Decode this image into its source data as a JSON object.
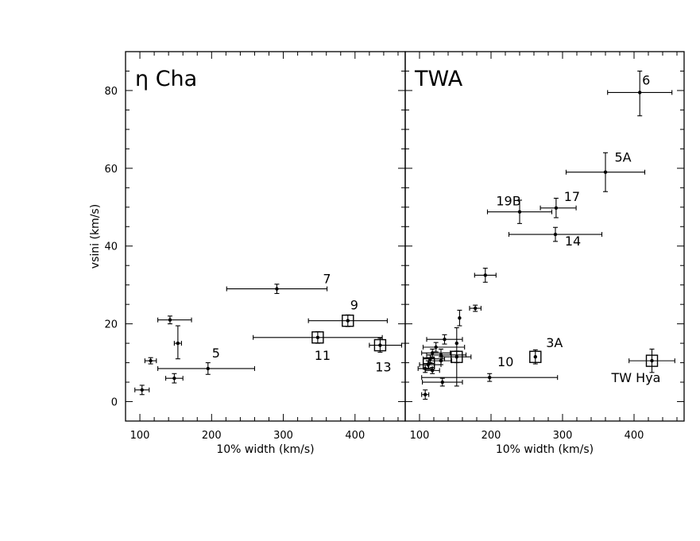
{
  "chart_data": [
    {
      "type": "scatter",
      "panel": "eta-cha",
      "title": "η Cha",
      "xlabel": "10% width (km/s)",
      "ylabel": "vsini (km/s)",
      "xlim": [
        80,
        470
      ],
      "ylim": [
        -5,
        90
      ],
      "xticks": [
        100,
        200,
        300,
        400
      ],
      "yticks": [
        0,
        20,
        40,
        60,
        80
      ],
      "points": [
        {
          "x": 103,
          "y": 3.0,
          "xerr": [
            10,
            10
          ],
          "yerr": [
            1.2,
            1.2
          ],
          "marker": "dot",
          "label": ""
        },
        {
          "x": 115,
          "y": 10.5,
          "xerr": [
            8,
            8
          ],
          "yerr": [
            0.8,
            0.8
          ],
          "marker": "dot",
          "label": ""
        },
        {
          "x": 148,
          "y": 6.0,
          "xerr": [
            12,
            12
          ],
          "yerr": [
            1.2,
            1.2
          ],
          "marker": "dot",
          "label": ""
        },
        {
          "x": 142,
          "y": 21.0,
          "xerr": [
            17,
            30
          ],
          "yerr": [
            1.0,
            1.0
          ],
          "marker": "dot",
          "label": ""
        },
        {
          "x": 153,
          "y": 15.0,
          "xerr": [
            5,
            5
          ],
          "yerr": [
            4.0,
            4.5
          ],
          "marker": "dot",
          "label": ""
        },
        {
          "x": 195,
          "y": 8.5,
          "xerr": [
            70,
            65
          ],
          "yerr": [
            1.5,
            1.5
          ],
          "marker": "dot",
          "label": "5"
        },
        {
          "x": 291,
          "y": 29.0,
          "xerr": [
            70,
            70
          ],
          "yerr": [
            1.2,
            1.2
          ],
          "marker": "dot",
          "label": "7"
        },
        {
          "x": 390,
          "y": 20.8,
          "xerr": [
            55,
            55
          ],
          "yerr": [
            1.5,
            1.5
          ],
          "marker": "square",
          "label": "9"
        },
        {
          "x": 348,
          "y": 16.5,
          "xerr": [
            90,
            90
          ],
          "yerr": [
            1.5,
            1.5
          ],
          "marker": "square",
          "label": "11"
        },
        {
          "x": 435,
          "y": 14.5,
          "xerr": [
            15,
            30
          ],
          "yerr": [
            1.8,
            1.8
          ],
          "marker": "square",
          "label": "13"
        }
      ]
    },
    {
      "type": "scatter",
      "panel": "twa",
      "title": "TWA",
      "xlabel": "10% width (km/s)",
      "ylabel": "",
      "xlim": [
        80,
        470
      ],
      "ylim": [
        -5,
        90
      ],
      "xticks": [
        100,
        200,
        300,
        400
      ],
      "yticks": [
        0,
        20,
        40,
        60,
        80
      ],
      "points": [
        {
          "x": 408,
          "y": 79.5,
          "xerr": [
            45,
            45
          ],
          "yerr": [
            6,
            5.5
          ],
          "marker": "dot",
          "label": "6"
        },
        {
          "x": 360,
          "y": 59.0,
          "xerr": [
            55,
            55
          ],
          "yerr": [
            5,
            5
          ],
          "marker": "dot",
          "label": "5A"
        },
        {
          "x": 291,
          "y": 49.8,
          "xerr": [
            22,
            28
          ],
          "yerr": [
            2.5,
            2.5
          ],
          "marker": "dot",
          "label": "17"
        },
        {
          "x": 240,
          "y": 48.8,
          "xerr": [
            45,
            45
          ],
          "yerr": [
            3,
            3
          ],
          "marker": "dot",
          "label": "19B"
        },
        {
          "x": 290,
          "y": 43.0,
          "xerr": [
            65,
            65
          ],
          "yerr": [
            1.8,
            1.8
          ],
          "marker": "dot",
          "label": "14"
        },
        {
          "x": 192,
          "y": 32.5,
          "xerr": [
            15,
            15
          ],
          "yerr": [
            1.8,
            1.8
          ],
          "marker": "dot",
          "label": ""
        },
        {
          "x": 178,
          "y": 24.0,
          "xerr": [
            8,
            8
          ],
          "yerr": [
            0.8,
            0.8
          ],
          "marker": "dot",
          "label": ""
        },
        {
          "x": 156,
          "y": 21.5,
          "xerr": [
            0,
            0
          ],
          "yerr": [
            2.0,
            2.0
          ],
          "marker": "dot",
          "label": ""
        },
        {
          "x": 152,
          "y": 15.0,
          "xerr": [
            0,
            0
          ],
          "yerr": [
            11,
            4
          ],
          "marker": "dot",
          "label": ""
        },
        {
          "x": 135,
          "y": 16.0,
          "xerr": [
            25,
            25
          ],
          "yerr": [
            1.2,
            1.2
          ],
          "marker": "dot",
          "label": ""
        },
        {
          "x": 123,
          "y": 14.0,
          "xerr": [
            18,
            40
          ],
          "yerr": [
            1.2,
            1.2
          ],
          "marker": "dot",
          "label": ""
        },
        {
          "x": 118,
          "y": 12.5,
          "xerr": [
            15,
            25
          ],
          "yerr": [
            1.0,
            1.0
          ],
          "marker": "dot",
          "label": ""
        },
        {
          "x": 130,
          "y": 12.0,
          "xerr": [
            20,
            35
          ],
          "yerr": [
            1.5,
            1.5
          ],
          "marker": "dot",
          "label": ""
        },
        {
          "x": 115,
          "y": 11.0,
          "xerr": [
            10,
            20
          ],
          "yerr": [
            1.0,
            1.0
          ],
          "marker": "dot",
          "label": ""
        },
        {
          "x": 130,
          "y": 10.5,
          "xerr": [
            15,
            15
          ],
          "yerr": [
            1.0,
            1.0
          ],
          "marker": "dot",
          "label": ""
        },
        {
          "x": 112,
          "y": 9.5,
          "xerr": [
            12,
            18
          ],
          "yerr": [
            1.0,
            1.0
          ],
          "marker": "dot",
          "label": ""
        },
        {
          "x": 108,
          "y": 8.5,
          "xerr": [
            10,
            10
          ],
          "yerr": [
            1.0,
            1.0
          ],
          "marker": "dot",
          "label": ""
        },
        {
          "x": 118,
          "y": 8.0,
          "xerr": [
            10,
            10
          ],
          "yerr": [
            0.8,
            0.8
          ],
          "marker": "dot",
          "label": ""
        },
        {
          "x": 152,
          "y": 11.5,
          "xerr": [
            20,
            20
          ],
          "yerr": [
            1.5,
            1.5
          ],
          "marker": "square",
          "label": ""
        },
        {
          "x": 113,
          "y": 9.8,
          "xerr": [
            8,
            8
          ],
          "yerr": [
            1.5,
            1.5
          ],
          "marker": "square",
          "label": ""
        },
        {
          "x": 132,
          "y": 5.0,
          "xerr": [
            28,
            28
          ],
          "yerr": [
            1.0,
            1.0
          ],
          "marker": "dot",
          "label": ""
        },
        {
          "x": 108,
          "y": 1.8,
          "xerr": [
            5,
            5
          ],
          "yerr": [
            1.2,
            1.2
          ],
          "marker": "dot",
          "label": ""
        },
        {
          "x": 198,
          "y": 6.2,
          "xerr": [
            95,
            95
          ],
          "yerr": [
            1.0,
            1.0
          ],
          "marker": "dot",
          "label": "10"
        },
        {
          "x": 262,
          "y": 11.5,
          "xerr": [
            0,
            0
          ],
          "yerr": [
            1.8,
            1.8
          ],
          "marker": "square",
          "label": "3A"
        },
        {
          "x": 425,
          "y": 10.5,
          "xerr": [
            32,
            32
          ],
          "yerr": [
            3.0,
            3.0
          ],
          "marker": "square",
          "label": "TW Hya"
        }
      ]
    }
  ]
}
